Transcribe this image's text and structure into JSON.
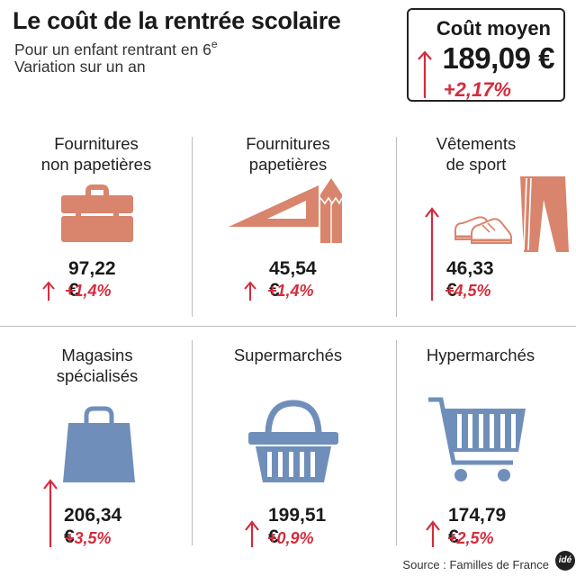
{
  "header": {
    "title": "Le coût de la rentrée scolaire",
    "subtitle_line1": "Pour un enfant rentrant en 6",
    "subtitle_sup": "e",
    "subtitle_line2": "Variation sur un an"
  },
  "average": {
    "label": "Coût moyen",
    "value": "189,09 €",
    "variation": "+2,17%"
  },
  "colors": {
    "salmon": "#d9846c",
    "blue": "#6f8fba",
    "red_arrow": "#d52b3c"
  },
  "categories": [
    {
      "label_line1": "Fournitures",
      "label_line2": "non papetières",
      "price": "97,22 €",
      "variation": "+1,4%",
      "icon": "briefcase-icon"
    },
    {
      "label_line1": "Fournitures",
      "label_line2": "papetières",
      "price": "45,54 €",
      "variation": "+1,4%",
      "icon": "set-square-pencil-icon"
    },
    {
      "label_line1": "Vêtements",
      "label_line2": "de sport",
      "price": "46,33 €",
      "variation": "+4,5%",
      "icon": "sneakers-pants-icon"
    },
    {
      "label_line1": "Magasins",
      "label_line2": "spécialisés",
      "price": "206,34 €",
      "variation": "+3,5%",
      "icon": "shopping-bag-icon"
    },
    {
      "label_line1": "Supermarchés",
      "label_line2": "",
      "price": "199,51 €",
      "variation": "+0,9%",
      "icon": "basket-icon"
    },
    {
      "label_line1": "Hypermarchés",
      "label_line2": "",
      "price": "174,79 €",
      "variation": "+2,5%",
      "icon": "shopping-cart-icon"
    }
  ],
  "footer": {
    "source": "Source : Familles de France",
    "logo": "idé"
  }
}
